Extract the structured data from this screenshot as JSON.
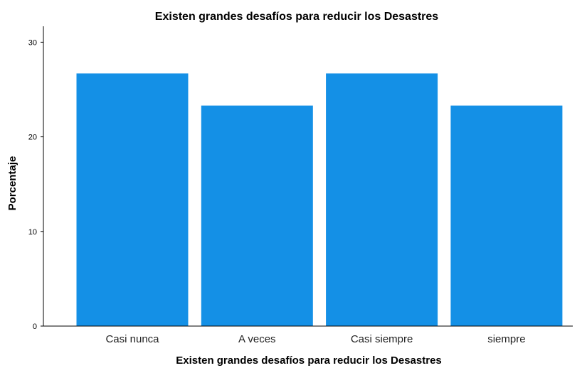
{
  "chart_data": {
    "type": "bar",
    "title": "Existen grandes desafíos para reducir los Desastres",
    "xlabel": "Existen grandes desafíos para reducir los Desastres",
    "ylabel": "Porcentaje",
    "categories": [
      "Casi nunca",
      "A veces",
      "Casi siempre",
      "siempre"
    ],
    "values": [
      26.7,
      23.3,
      26.7,
      23.3
    ],
    "ylim": [
      0,
      32
    ],
    "yticks": [
      "0",
      "10",
      "20",
      "30"
    ],
    "ytick_values": [
      0,
      10,
      20,
      30
    ],
    "bar_color": "#1490e6",
    "grid": false,
    "legend": "none"
  }
}
